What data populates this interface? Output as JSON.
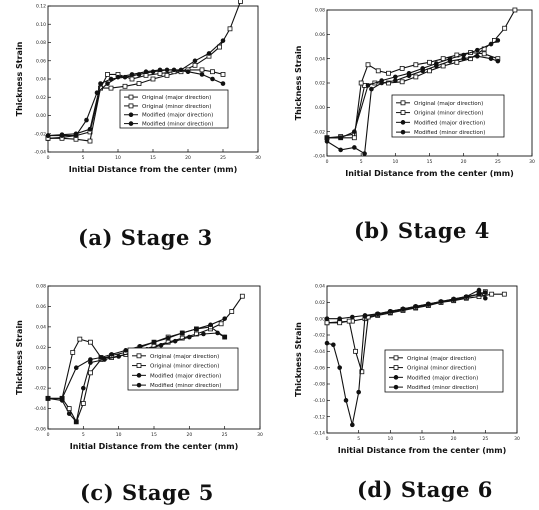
{
  "figure": {
    "captions": [
      "(a) Stage 3",
      "(b) Stage 4",
      "(c) Stage 5",
      "(d) Stage 6"
    ]
  },
  "chart_data": [
    {
      "type": "line",
      "caption": "(a) Stage 3",
      "xlabel": "Initial Distance from the center (mm)",
      "ylabel": "Thickness Strain",
      "xlim": [
        0,
        30
      ],
      "ylim": [
        -0.04,
        0.12
      ],
      "xticks": [
        0,
        5,
        10,
        15,
        20,
        25,
        30
      ],
      "yticks": [
        -0.04,
        -0.02,
        0.0,
        0.02,
        0.04,
        0.06,
        0.08,
        0.1,
        0.12
      ],
      "ytick_labels": [
        "-0.04",
        "-0.02",
        "0.00",
        "0.02",
        "0.04",
        "0.06",
        "0.08",
        "0.10",
        "0.12"
      ],
      "grid": false,
      "legend_position": "center-right",
      "series": [
        {
          "name": "Original (major direction)",
          "marker": "open-square",
          "x": [
            0,
            2,
            4,
            6,
            7.5,
            9,
            11,
            13,
            15,
            17,
            19,
            21,
            23,
            24.5,
            26,
            27.5
          ],
          "y": [
            -0.025,
            -0.024,
            -0.022,
            -0.018,
            0.03,
            0.03,
            0.032,
            0.035,
            0.04,
            0.044,
            0.048,
            0.055,
            0.065,
            0.075,
            0.095,
            0.125
          ]
        },
        {
          "name": "Original (minor direction)",
          "marker": "open-square",
          "x": [
            0,
            2,
            4,
            6,
            7.5,
            8.5,
            10,
            12,
            14,
            16,
            18,
            20,
            22,
            23.5,
            25
          ],
          "y": [
            -0.025,
            -0.025,
            -0.026,
            -0.028,
            0.03,
            0.045,
            0.045,
            0.04,
            0.044,
            0.046,
            0.048,
            0.05,
            0.05,
            0.048,
            0.045
          ]
        },
        {
          "name": "Modified (major direction)",
          "marker": "filled-circle",
          "x": [
            0,
            2,
            4,
            6,
            7.5,
            9,
            11,
            13,
            15,
            17,
            19,
            21,
            23,
            25
          ],
          "y": [
            -0.022,
            -0.021,
            -0.02,
            -0.015,
            0.035,
            0.04,
            0.042,
            0.045,
            0.048,
            0.05,
            0.05,
            0.06,
            0.068,
            0.082
          ]
        },
        {
          "name": "Modified (minor direction)",
          "marker": "filled-circle",
          "x": [
            0,
            2,
            4,
            5.5,
            7,
            8.5,
            10,
            12,
            14,
            16,
            18,
            20,
            22,
            23.5,
            25
          ],
          "y": [
            -0.022,
            -0.022,
            -0.022,
            -0.005,
            0.025,
            0.035,
            0.042,
            0.045,
            0.048,
            0.05,
            0.05,
            0.048,
            0.045,
            0.04,
            0.035
          ]
        }
      ]
    },
    {
      "type": "line",
      "caption": "(b) Stage 4",
      "xlabel": "Initial Distance from the center (mm)",
      "ylabel": "Thickness Strain",
      "xlim": [
        0,
        30
      ],
      "ylim": [
        -0.04,
        0.08
      ],
      "xticks": [
        0,
        5,
        10,
        15,
        20,
        25,
        30
      ],
      "yticks": [
        -0.04,
        -0.02,
        0.0,
        0.02,
        0.04,
        0.06,
        0.08
      ],
      "ytick_labels": [
        "-0.04",
        "-0.02",
        "0.00",
        "0.02",
        "0.04",
        "0.06",
        "0.08"
      ],
      "grid": false,
      "legend_position": "center-right",
      "series": [
        {
          "name": "Original (major direction)",
          "marker": "open-square",
          "x": [
            0,
            2,
            4,
            5.5,
            7,
            9,
            11,
            13,
            15,
            17,
            19,
            21,
            23,
            24.5,
            26,
            27.5
          ],
          "y": [
            -0.025,
            -0.024,
            -0.022,
            0.018,
            0.02,
            0.02,
            0.021,
            0.025,
            0.03,
            0.034,
            0.037,
            0.04,
            0.048,
            0.055,
            0.065,
            0.08
          ]
        },
        {
          "name": "Original (minor direction)",
          "marker": "open-square",
          "x": [
            0,
            2,
            4,
            5,
            6,
            7.5,
            9,
            11,
            13,
            15,
            17,
            19,
            21,
            23,
            25
          ],
          "y": [
            -0.025,
            -0.025,
            -0.025,
            0.02,
            0.035,
            0.03,
            0.028,
            0.032,
            0.035,
            0.037,
            0.04,
            0.043,
            0.045,
            0.044,
            0.04
          ]
        },
        {
          "name": "Modified (major direction)",
          "marker": "filled-circle",
          "x": [
            0,
            2,
            4,
            6,
            8,
            10,
            12,
            14,
            16,
            18,
            20,
            22,
            24,
            25
          ],
          "y": [
            -0.025,
            -0.025,
            -0.02,
            0.018,
            0.022,
            0.025,
            0.028,
            0.032,
            0.036,
            0.04,
            0.043,
            0.047,
            0.052,
            0.055
          ]
        },
        {
          "name": "Modified (minor direction)",
          "marker": "filled-circle",
          "x": [
            0,
            2,
            4,
            5.5,
            6.5,
            8,
            10,
            12,
            14,
            16,
            18,
            20,
            22,
            24,
            25
          ],
          "y": [
            -0.028,
            -0.035,
            -0.033,
            -0.038,
            0.015,
            0.02,
            0.022,
            0.026,
            0.03,
            0.034,
            0.038,
            0.04,
            0.042,
            0.04,
            0.038
          ]
        }
      ]
    },
    {
      "type": "line",
      "caption": "(c) Stage 5",
      "xlabel": "Initial Distance from the center (mm)",
      "ylabel": "Thickness Strain",
      "xlim": [
        0,
        30
      ],
      "ylim": [
        -0.06,
        0.08
      ],
      "xticks": [
        0,
        5,
        10,
        15,
        20,
        25,
        30
      ],
      "yticks": [
        -0.06,
        -0.04,
        -0.02,
        0.0,
        0.02,
        0.04,
        0.06,
        0.08
      ],
      "ytick_labels": [
        "-0.06",
        "-0.04",
        "-0.02",
        "0.00",
        "0.02",
        "0.04",
        "0.06",
        "0.08"
      ],
      "grid": false,
      "legend_position": "bottom-right",
      "series": [
        {
          "name": "Original (major direction)",
          "marker": "open-square",
          "x": [
            0,
            2,
            3.5,
            4.5,
            6,
            7.5,
            9,
            11,
            13,
            15,
            17,
            19,
            21,
            23,
            24.5,
            26,
            27.5
          ],
          "y": [
            -0.03,
            -0.03,
            0.015,
            0.028,
            0.025,
            0.01,
            0.01,
            0.013,
            0.017,
            0.021,
            0.025,
            0.029,
            0.033,
            0.038,
            0.043,
            0.055,
            0.07
          ]
        },
        {
          "name": "Original (minor direction)",
          "marker": "open-square",
          "x": [
            0,
            2,
            3,
            4,
            5,
            6,
            7.5,
            9,
            11,
            13,
            15,
            17,
            19,
            21,
            23,
            25
          ],
          "y": [
            -0.03,
            -0.03,
            -0.04,
            -0.053,
            -0.035,
            -0.005,
            0.008,
            0.012,
            0.015,
            0.02,
            0.025,
            0.03,
            0.034,
            0.038,
            0.04,
            0.03
          ]
        },
        {
          "name": "Modified (major direction)",
          "marker": "filled-circle",
          "x": [
            0,
            2,
            4,
            6,
            7.5,
            9,
            11,
            13,
            15,
            17,
            19,
            21,
            23,
            25
          ],
          "y": [
            -0.03,
            -0.03,
            0.0,
            0.008,
            0.01,
            0.013,
            0.017,
            0.021,
            0.025,
            0.029,
            0.034,
            0.038,
            0.042,
            0.048
          ]
        },
        {
          "name": "Modified (minor direction)",
          "marker": "filled-circle",
          "x": [
            0,
            2,
            3,
            4,
            5,
            6,
            8,
            10,
            12,
            14,
            16,
            18,
            20,
            22,
            24,
            25
          ],
          "y": [
            -0.03,
            -0.032,
            -0.045,
            -0.053,
            -0.02,
            0.005,
            0.008,
            0.011,
            0.015,
            0.018,
            0.022,
            0.026,
            0.03,
            0.033,
            0.034,
            0.03
          ]
        }
      ]
    },
    {
      "type": "line",
      "caption": "(d) Stage 6",
      "xlabel": "Initial Distance from the center (mm)",
      "ylabel": "Thickness Strain",
      "xlim": [
        0,
        30
      ],
      "ylim": [
        -0.14,
        0.04
      ],
      "xticks": [
        0,
        5,
        10,
        15,
        20,
        25,
        30
      ],
      "yticks": [
        -0.14,
        -0.12,
        -0.1,
        -0.08,
        -0.06,
        -0.04,
        -0.02,
        0.0,
        0.02,
        0.04
      ],
      "ytick_labels": [
        "-0.14",
        "-0.12",
        "-0.10",
        "-0.08",
        "-0.06",
        "-0.04",
        "-0.02",
        "0.00",
        "0.02",
        "0.04"
      ],
      "grid": false,
      "legend_position": "center-right",
      "series": [
        {
          "name": "Original (major direction)",
          "marker": "open-square",
          "x": [
            0,
            2,
            4,
            6,
            8,
            10,
            12,
            14,
            16,
            18,
            20,
            22,
            24,
            26,
            28
          ],
          "y": [
            -0.005,
            -0.004,
            -0.003,
            0.0,
            0.004,
            0.007,
            0.01,
            0.013,
            0.016,
            0.02,
            0.022,
            0.025,
            0.027,
            0.03,
            0.03
          ]
        },
        {
          "name": "Original (minor direction)",
          "marker": "open-square",
          "x": [
            0,
            2,
            3.5,
            4.5,
            5.5,
            6.5,
            8,
            10,
            12,
            14,
            16,
            18,
            20,
            22,
            24,
            25
          ],
          "y": [
            -0.005,
            -0.005,
            -0.003,
            -0.04,
            -0.065,
            0.002,
            0.005,
            0.008,
            0.011,
            0.014,
            0.017,
            0.02,
            0.023,
            0.026,
            0.03,
            0.033
          ]
        },
        {
          "name": "Modified (major direction)",
          "marker": "filled-circle",
          "x": [
            0,
            2,
            4,
            6,
            8,
            10,
            12,
            14,
            16,
            18,
            20,
            22,
            24,
            25
          ],
          "y": [
            0.0,
            0.0,
            0.002,
            0.004,
            0.006,
            0.009,
            0.012,
            0.015,
            0.018,
            0.021,
            0.024,
            0.027,
            0.03,
            0.032
          ]
        },
        {
          "name": "Modified (minor direction)",
          "marker": "filled-circle",
          "x": [
            0,
            1,
            2,
            3,
            4,
            5,
            6,
            8,
            10,
            12,
            14,
            16,
            18,
            20,
            22,
            24,
            25
          ],
          "y": [
            -0.03,
            -0.032,
            -0.06,
            -0.1,
            -0.13,
            -0.09,
            0.003,
            0.006,
            0.009,
            0.012,
            0.015,
            0.018,
            0.021,
            0.024,
            0.027,
            0.035,
            0.025
          ]
        }
      ]
    }
  ]
}
